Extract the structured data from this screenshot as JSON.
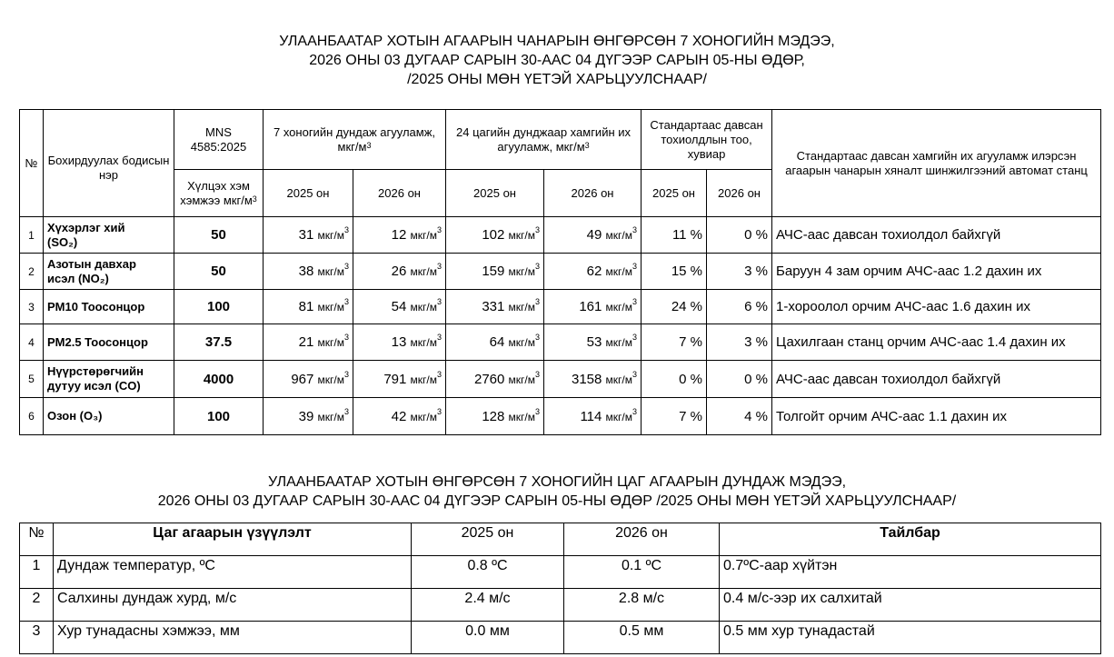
{
  "title1": {
    "line1": "УЛААНБААТАР ХОТЫН АГААРЫН ЧАНАРЫН ӨНГӨРСӨН 7 ХОНОГИЙН МЭДЭЭ,",
    "line2": "2026 ОНЫ 03 ДУГААР САРЫН 30-ААС 04 ДҮГЭЭР САРЫН 05-НЫ ӨДӨР,",
    "line3": "/2025 ОНЫ МӨН ҮЕТЭЙ ХАРЬЦУУЛСНААР/"
  },
  "air_table": {
    "headers": {
      "no": "№",
      "name": "Бохирдуулах бодисын нэр",
      "mns": "MNS 4585:2025",
      "limit": "Хүлцэх хэм хэмжээ мкг/м",
      "limit_sup": "3",
      "week_avg": "7 хоногийн дундаж агууламж, мкг/м",
      "week_avg_sup": "3",
      "max24": "24 цагийн дунджаар хамгийн их агууламж, мкг/м",
      "max24_sup": "3",
      "exceed": "Стандартаас давсан тохиолдлын тоо, хувиар",
      "station": "Стандартаас давсан хамгийн их агууламж илэрсэн агаарын чанарын хяналт шинжилгээний автомат станц",
      "y2025": "2025 он",
      "y2026": "2026 он"
    },
    "unit": "мкг/м",
    "unit_sup": "3",
    "rows": [
      {
        "no": "1",
        "name1": "Хүхэрлэг хий",
        "name2": "(SO₂)",
        "std": "50",
        "w2025": "31",
        "w2026": "12",
        "m2025": "102",
        "m2026": "49",
        "p2025": "11 %",
        "p2026": "0 %",
        "station": "АЧС-аас давсан тохиолдол байхгүй"
      },
      {
        "no": "2",
        "name1": "Азотын давхар",
        "name2": "исэл (NO₂)",
        "std": "50",
        "w2025": "38",
        "w2026": "26",
        "m2025": "159",
        "m2026": "62",
        "p2025": "15 %",
        "p2026": "3 %",
        "station": "Баруун 4 зам орчим АЧС-аас 1.2 дахин их"
      },
      {
        "no": "3",
        "name1": "PM10 Тоосонцор",
        "name2": "",
        "std": "100",
        "w2025": "81",
        "w2026": "54",
        "m2025": "331",
        "m2026": "161",
        "p2025": "24 %",
        "p2026": "6 %",
        "station": "1-хороолол орчим АЧС-аас 1.6 дахин их"
      },
      {
        "no": "4",
        "name1": "PM2.5 Тоосонцор",
        "name2": "",
        "std": "37.5",
        "w2025": "21",
        "w2026": "13",
        "m2025": "64",
        "m2026": "53",
        "p2025": "7 %",
        "p2026": "3 %",
        "station": "Цахилгаан станц орчим АЧС-аас 1.4 дахин их"
      },
      {
        "no": "5",
        "name1": "Нүүрстөрөгчийн",
        "name2": "дутуу исэл  (CO)",
        "std": "4000",
        "w2025": "967",
        "w2026": "791",
        "m2025": "2760",
        "m2026": "3158",
        "p2025": "0 %",
        "p2026": "0 %",
        "station": "АЧС-аас давсан тохиолдол байхгүй"
      },
      {
        "no": "6",
        "name1": "Озон (O₃)",
        "name2": "",
        "std": "100",
        "w2025": "39",
        "w2026": "42",
        "m2025": "128",
        "m2026": "114",
        "p2025": "7 %",
        "p2026": "4 %",
        "station": "Толгойт орчим АЧС-аас 1.1 дахин их"
      }
    ]
  },
  "title2": {
    "line1": "УЛААНБААТАР ХОТЫН ӨНГӨРСӨН 7 ХОНОГИЙН ЦАГ АГААРЫН ДУНДАЖ МЭДЭЭ,",
    "line2": "2026 ОНЫ 03 ДУГААР САРЫН 30-ААС 04 ДҮГЭЭР САРЫН 05-НЫ ӨДӨР /2025 ОНЫ МӨН ҮЕТЭЙ ХАРЬЦУУЛСНААР/"
  },
  "weather_table": {
    "headers": {
      "no": "№",
      "indicator": "Цаг агаарын үзүүлэлт",
      "y2025": "2025 он",
      "y2026": "2026 он",
      "note": "Тайлбар"
    },
    "rows": [
      {
        "no": "1",
        "indicator": "Дундаж температур, ºC",
        "v2025": "0.8 ºC",
        "v2026": "0.1 ºC",
        "note": "0.7ºC-аар хүйтэн"
      },
      {
        "no": "2",
        "indicator": "Салхины дундаж хурд, м/с",
        "v2025": "2.4 м/с",
        "v2026": "2.8 м/с",
        "note": "0.4 м/с-ээр их салхитай"
      },
      {
        "no": "3",
        "indicator": "Хур тунадасны хэмжээ, мм",
        "v2025": "0.0 мм",
        "v2026": "0.5 мм",
        "note": "0.5 мм хур тунадастай"
      }
    ]
  }
}
